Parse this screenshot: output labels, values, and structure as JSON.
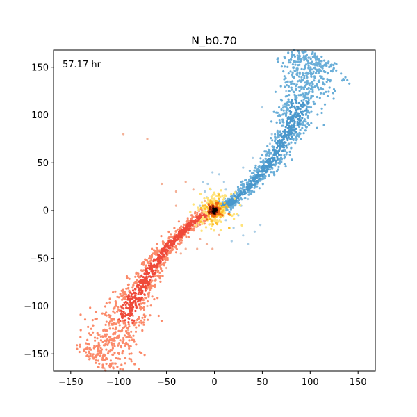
{
  "chart_data": {
    "type": "scatter",
    "title": "N_b0.70",
    "xlabel": "",
    "ylabel": "",
    "annotation": "57.17 hr",
    "xlim": [
      -168,
      168
    ],
    "ylim": [
      -168,
      168
    ],
    "xticks": [
      -150,
      -100,
      -50,
      0,
      50,
      100,
      150
    ],
    "yticks": [
      -150,
      -100,
      -50,
      0,
      50,
      100,
      150
    ],
    "grid": false,
    "legend": "none",
    "series": [
      {
        "colors": {
          "dense": "#4a98cc",
          "spread": "#6aaed8",
          "sparse": "#a9cde6"
        },
        "path": [
          [
            8,
            4
          ],
          [
            20,
            10
          ],
          [
            35,
            24
          ],
          [
            50,
            40
          ],
          [
            62,
            55
          ],
          [
            72,
            72
          ],
          [
            80,
            87
          ],
          [
            85,
            100
          ],
          [
            90,
            118
          ],
          [
            95,
            135
          ],
          [
            102,
            150
          ],
          [
            108,
            162
          ]
        ],
        "scatter": [
          [
            12,
            22
          ],
          [
            18,
            16
          ],
          [
            25,
            12
          ],
          [
            -10,
            20
          ],
          [
            -8,
            14
          ],
          [
            -4,
            22
          ],
          [
            12,
            -10
          ],
          [
            20,
            -18
          ],
          [
            30,
            -26
          ],
          [
            35,
            -35
          ],
          [
            42,
            -22
          ],
          [
            48,
            -15
          ],
          [
            5,
            38
          ],
          [
            -2,
            40
          ],
          [
            10,
            30
          ],
          [
            -15,
            5
          ],
          [
            -7,
            28
          ],
          [
            25,
            -5
          ],
          [
            18,
            -32
          ],
          [
            28,
            5
          ],
          [
            35,
            12
          ],
          [
            55,
            60
          ],
          [
            58,
            70
          ],
          [
            60,
            80
          ],
          [
            65,
            92
          ],
          [
            70,
            100
          ],
          [
            72,
            110
          ],
          [
            75,
            125
          ],
          [
            78,
            135
          ],
          [
            82,
            150
          ],
          [
            88,
            160
          ],
          [
            50,
            108
          ],
          [
            100,
            160
          ],
          [
            -12,
            30
          ],
          [
            30,
            45
          ],
          [
            40,
            55
          ]
        ]
      },
      {
        "colors": {
          "dense": "#ef4a3a",
          "spread": "#fb8a6a",
          "sparse": "#f4b096"
        },
        "path": [
          [
            -8,
            -4
          ],
          [
            -20,
            -10
          ],
          [
            -35,
            -24
          ],
          [
            -50,
            -40
          ],
          [
            -62,
            -55
          ],
          [
            -72,
            -72
          ],
          [
            -80,
            -87
          ],
          [
            -88,
            -100
          ],
          [
            -95,
            -118
          ],
          [
            -105,
            -132
          ],
          [
            -115,
            -150
          ],
          [
            -125,
            -162
          ]
        ],
        "scatter": [
          [
            -20,
            -15
          ],
          [
            -25,
            -20
          ],
          [
            -30,
            -26
          ],
          [
            -28,
            -10
          ],
          [
            -22,
            22
          ],
          [
            -30,
            30
          ],
          [
            -40,
            5
          ],
          [
            -15,
            -30
          ],
          [
            -8,
            -35
          ],
          [
            -2,
            -40
          ],
          [
            5,
            -25
          ],
          [
            -18,
            -40
          ],
          [
            -35,
            -45
          ],
          [
            -45,
            -35
          ],
          [
            -60,
            -45
          ],
          [
            -50,
            -60
          ],
          [
            -70,
            -65
          ],
          [
            -75,
            -80
          ],
          [
            -78,
            -95
          ],
          [
            -85,
            -110
          ],
          [
            -90,
            -125
          ],
          [
            -70,
            -100
          ],
          [
            -72,
            -110
          ],
          [
            -110,
            -120
          ],
          [
            -100,
            -140
          ],
          [
            -120,
            -130
          ],
          [
            -95,
            80
          ],
          [
            -70,
            75
          ],
          [
            -55,
            28
          ],
          [
            -10,
            10
          ],
          [
            -12,
            5
          ],
          [
            -40,
            20
          ],
          [
            -30,
            -40
          ],
          [
            -130,
            -155
          ],
          [
            -115,
            -165
          ],
          [
            -105,
            -160
          ]
        ]
      },
      {
        "colors": {
          "core": "#000000",
          "ring1": "#8b1a0a",
          "ring2": "#f06a10",
          "ring3": "#fdbf2d",
          "halo": "#ffe37a"
        }
      }
    ]
  }
}
